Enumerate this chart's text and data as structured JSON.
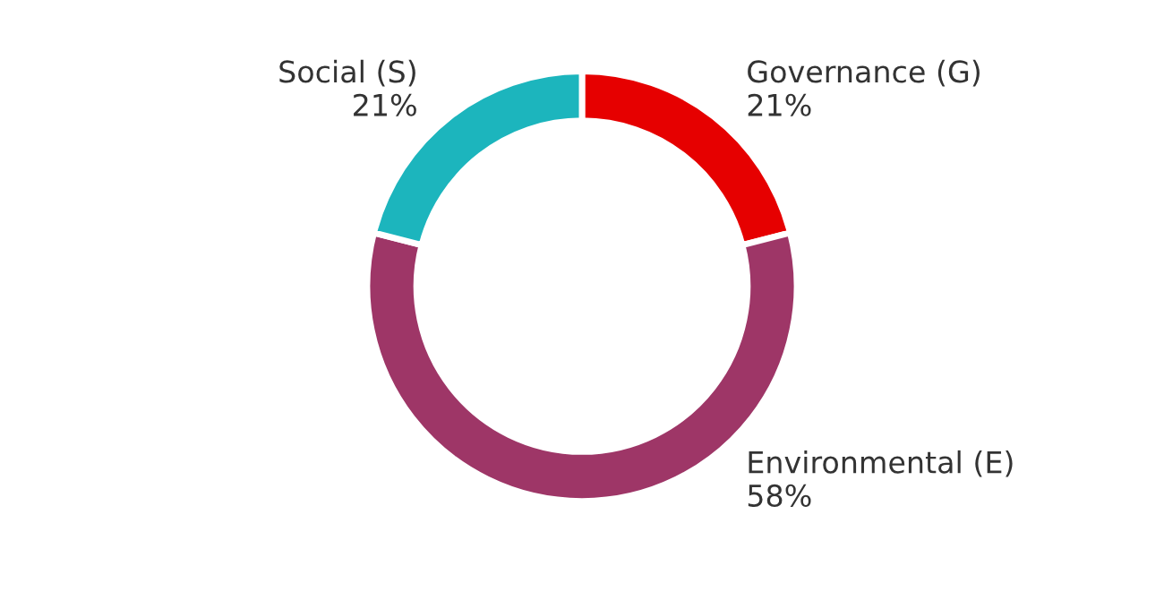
{
  "chart_data": {
    "type": "donut",
    "categories": [
      "Governance (G)",
      "Environmental (E)",
      "Social (S)"
    ],
    "values": [
      21,
      58,
      21
    ],
    "value_labels": [
      "21%",
      "58%",
      "21%"
    ],
    "colors": [
      "#e60000",
      "#9e3667",
      "#1cb5bd"
    ]
  }
}
